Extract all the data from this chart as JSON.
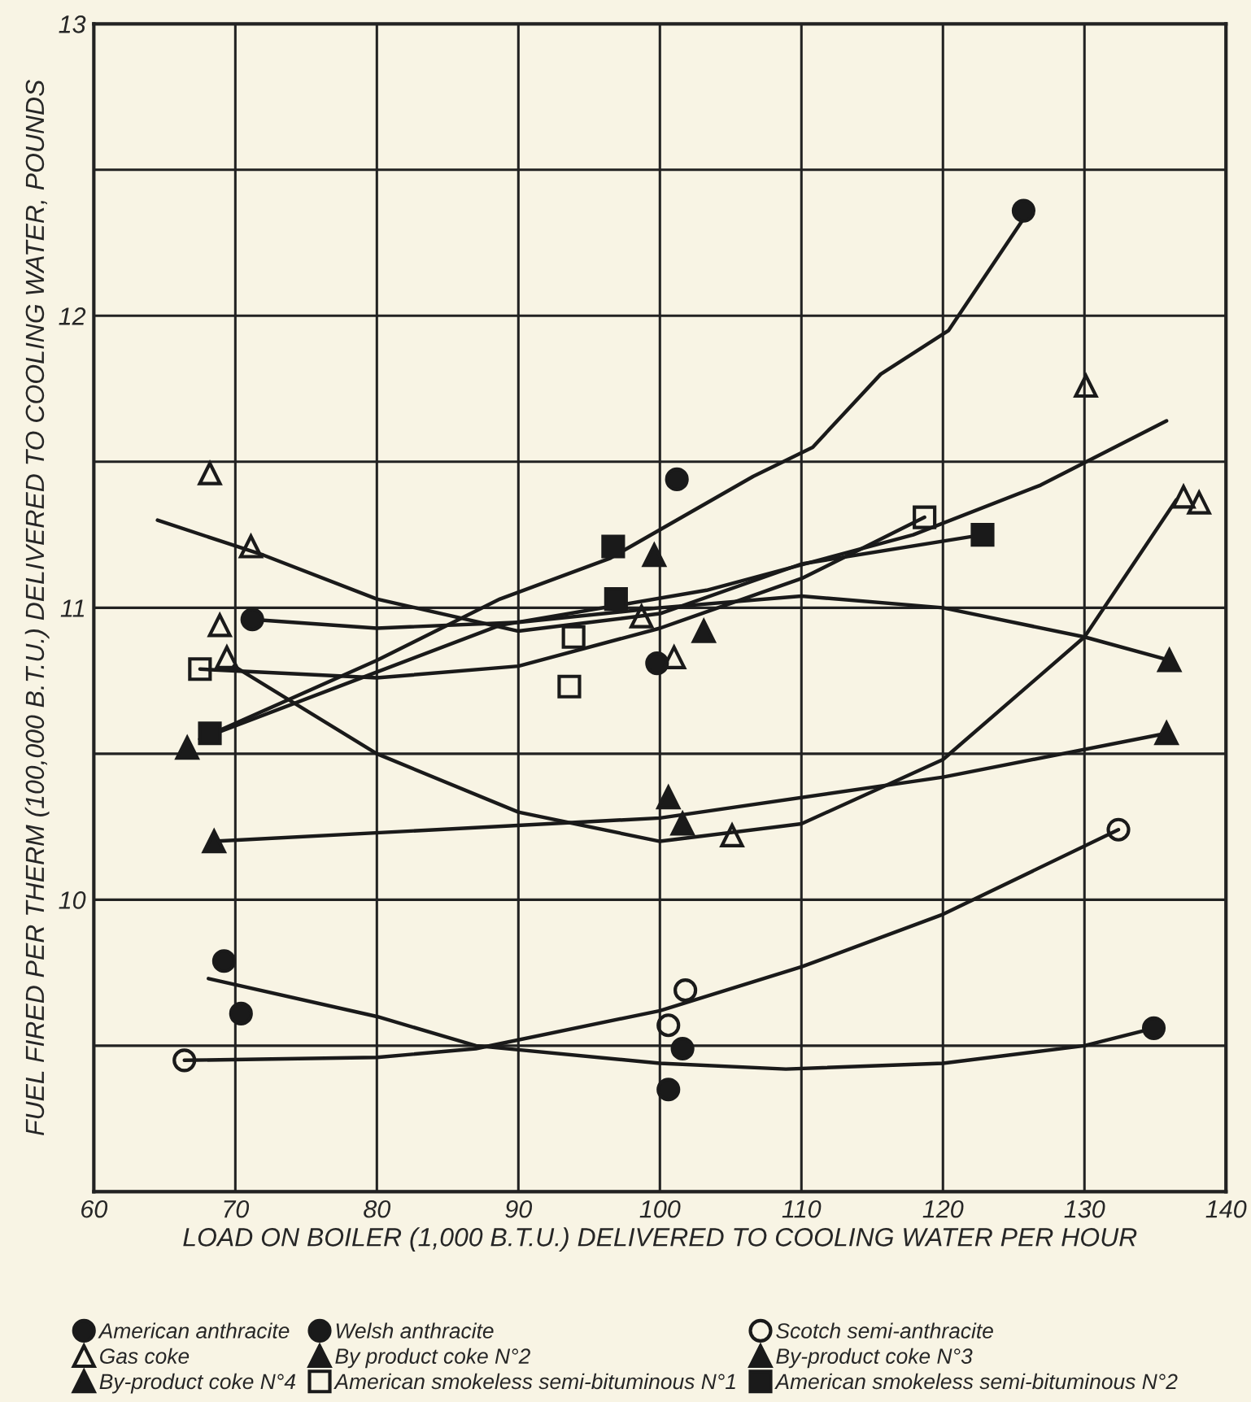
{
  "chart_data": {
    "type": "scatter",
    "xlabel": "LOAD ON BOILER (1,000 B.T.U.) DELIVERED TO COOLING WATER PER HOUR",
    "ylabel": "FUEL FIRED PER THERM (100,000 B.T.U.) DELIVERED TO COOLING WATER, POUNDS",
    "xlim": [
      60,
      140
    ],
    "xticks": [
      60,
      70,
      80,
      90,
      100,
      110,
      120,
      130,
      140
    ],
    "ylim": [
      9,
      13
    ],
    "yticks": [
      {
        "value": 9,
        "label": null
      },
      {
        "value": 9.5,
        "label": null
      },
      10,
      {
        "value": 10.5,
        "label": null
      },
      11,
      {
        "value": 11.5,
        "label": null
      },
      12,
      {
        "value": 12.5,
        "label": null
      },
      13
    ],
    "grid": true,
    "legend": "bottom",
    "series": [
      {
        "name": "American anthracite",
        "marker": "circle",
        "color": "#1a1a1a",
        "x": [
          71.2,
          101.2,
          99.8,
          125.7
        ],
        "values": [
          10.96,
          11.44,
          10.81,
          12.36
        ]
      },
      {
        "name": "Welsh anthracite",
        "marker": "circle",
        "color": "#1a1a1a",
        "x": [
          69.2,
          70.4,
          100.6,
          101.6,
          134.9
        ],
        "values": [
          9.79,
          9.61,
          9.35,
          9.49,
          9.56
        ]
      },
      {
        "name": "Scotch semi-anthracite",
        "marker": "circle",
        "color": "#1a1a1a",
        "x": [
          66.4,
          100.6,
          101.8,
          132.4
        ],
        "values": [
          9.45,
          9.57,
          9.69,
          10.24
        ]
      },
      {
        "name": "Gas coke",
        "marker": "triangle",
        "color": "#1a1a1a",
        "x": [
          68.2,
          71.1,
          68.9,
          69.4,
          98.7,
          101.0,
          105.1,
          130.1,
          137.0,
          138.1
        ],
        "values": [
          11.46,
          11.21,
          10.94,
          10.83,
          10.97,
          10.83,
          10.22,
          11.76,
          11.38,
          11.36
        ]
      },
      {
        "name": "By product coke N°2",
        "marker": "triangle",
        "color": "#1a1a1a",
        "x": [
          68.5,
          100.6,
          135.8
        ],
        "values": [
          10.2,
          10.35,
          10.57
        ]
      },
      {
        "name": "By-product coke N°3",
        "marker": "triangle",
        "color": "#1a1a1a",
        "x": [
          99.6,
          103.1,
          101.6
        ],
        "values": [
          11.18,
          10.92,
          10.26
        ]
      },
      {
        "name": "By-product coke N°4",
        "marker": "triangle",
        "color": "#1a1a1a",
        "x": [
          66.6,
          136.0
        ],
        "values": [
          10.52,
          10.82
        ]
      },
      {
        "name": "American smokeless semi-bituminous N°1",
        "marker": "square",
        "color": "#1a1a1a",
        "x": [
          67.5,
          93.9,
          93.6,
          118.7
        ],
        "values": [
          10.79,
          10.9,
          10.73,
          11.31
        ]
      },
      {
        "name": "American smokeless semi-bituminous N°2",
        "marker": "square",
        "color": "#1a1a1a",
        "x": [
          68.2,
          96.7,
          96.9,
          122.8
        ],
        "values": [
          10.57,
          11.21,
          11.03,
          11.25
        ]
      },
      {
        "type": "line",
        "color": "#1a1a1a",
        "x": [
          67.5,
          80,
          88.7,
          96.5,
          106.6,
          110.8,
          115.6,
          120.4,
          125.8
        ],
        "values": [
          10.55,
          10.82,
          11.03,
          11.17,
          11.45,
          11.55,
          11.8,
          11.95,
          12.34
        ]
      },
      {
        "type": "line",
        "color": "#1a1a1a",
        "x": [
          67.5,
          80,
          88.7,
          103.3,
          117.9,
          126.9,
          135.8
        ],
        "values": [
          10.55,
          10.78,
          10.94,
          11.06,
          11.25,
          11.42,
          11.64
        ]
      },
      {
        "type": "line",
        "color": "#1a1a1a",
        "x": [
          64.5,
          72,
          80,
          90,
          100,
          110,
          122.8
        ],
        "values": [
          11.3,
          11.18,
          11.03,
          10.92,
          10.98,
          11.15,
          11.25
        ]
      },
      {
        "type": "line",
        "color": "#1a1a1a",
        "x": [
          71.2,
          80,
          90,
          100,
          110,
          120,
          130,
          136
        ],
        "values": [
          10.96,
          10.93,
          10.95,
          11.0,
          11.04,
          11.0,
          10.9,
          10.82
        ]
      },
      {
        "type": "line",
        "color": "#1a1a1a",
        "x": [
          67.5,
          80,
          90,
          100,
          110,
          118.7
        ],
        "values": [
          10.79,
          10.76,
          10.8,
          10.93,
          11.1,
          11.31
        ]
      },
      {
        "type": "line",
        "color": "#1a1a1a",
        "x": [
          69.9,
          80,
          90,
          100,
          110,
          120,
          130,
          136.5
        ],
        "values": [
          10.8,
          10.5,
          10.3,
          10.2,
          10.26,
          10.48,
          10.9,
          11.37
        ]
      },
      {
        "type": "line",
        "color": "#1a1a1a",
        "x": [
          68.5,
          100,
          120,
          135.8
        ],
        "values": [
          10.2,
          10.28,
          10.42,
          10.57
        ]
      },
      {
        "type": "line",
        "color": "#1a1a1a",
        "x": [
          68.1,
          80,
          87,
          100,
          108.9,
          120,
          130,
          134.9
        ],
        "values": [
          9.73,
          9.6,
          9.5,
          9.44,
          9.42,
          9.44,
          9.5,
          9.56
        ]
      },
      {
        "type": "line",
        "color": "#1a1a1a",
        "x": [
          66.4,
          80,
          87,
          100,
          110,
          120,
          132.4
        ],
        "values": [
          9.45,
          9.46,
          9.49,
          9.62,
          9.77,
          9.95,
          10.24
        ]
      }
    ]
  }
}
